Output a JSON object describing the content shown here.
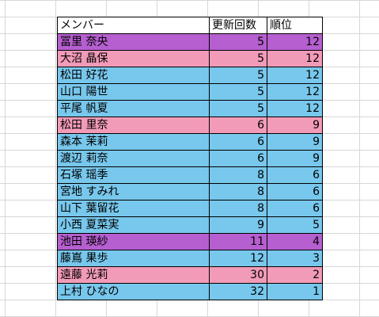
{
  "header": {
    "member": "メンバー",
    "updates": "更新回数",
    "rank": "順位"
  },
  "colors": {
    "purple": "#b65fd0",
    "pink": "#f29bb8",
    "blue": "#78c7ec"
  },
  "rows": [
    {
      "name": "冨里 奈央",
      "updates": "5",
      "rank": "12",
      "color": "purple"
    },
    {
      "name": "大沼 晶保",
      "updates": "5",
      "rank": "12",
      "color": "pink"
    },
    {
      "name": "松田 好花",
      "updates": "5",
      "rank": "12",
      "color": "blue"
    },
    {
      "name": "山口 陽世",
      "updates": "5",
      "rank": "12",
      "color": "blue"
    },
    {
      "name": "平尾 帆夏",
      "updates": "5",
      "rank": "12",
      "color": "blue"
    },
    {
      "name": "松田 里奈",
      "updates": "6",
      "rank": "9",
      "color": "pink"
    },
    {
      "name": "森本 茉莉",
      "updates": "6",
      "rank": "9",
      "color": "blue"
    },
    {
      "name": "渡辺 莉奈",
      "updates": "6",
      "rank": "9",
      "color": "blue"
    },
    {
      "name": "石塚 瑶季",
      "updates": "8",
      "rank": "6",
      "color": "blue"
    },
    {
      "name": "宮地 すみれ",
      "updates": "8",
      "rank": "6",
      "color": "blue"
    },
    {
      "name": "山下 葉留花",
      "updates": "8",
      "rank": "6",
      "color": "blue"
    },
    {
      "name": "小西 夏菜実",
      "updates": "9",
      "rank": "5",
      "color": "blue"
    },
    {
      "name": "池田 瑛紗",
      "updates": "11",
      "rank": "4",
      "color": "purple"
    },
    {
      "name": "藤嶌 果歩",
      "updates": "12",
      "rank": "3",
      "color": "blue"
    },
    {
      "name": "遠藤 光莉",
      "updates": "30",
      "rank": "2",
      "color": "pink"
    },
    {
      "name": "上村 ひなの",
      "updates": "32",
      "rank": "1",
      "color": "blue"
    }
  ]
}
